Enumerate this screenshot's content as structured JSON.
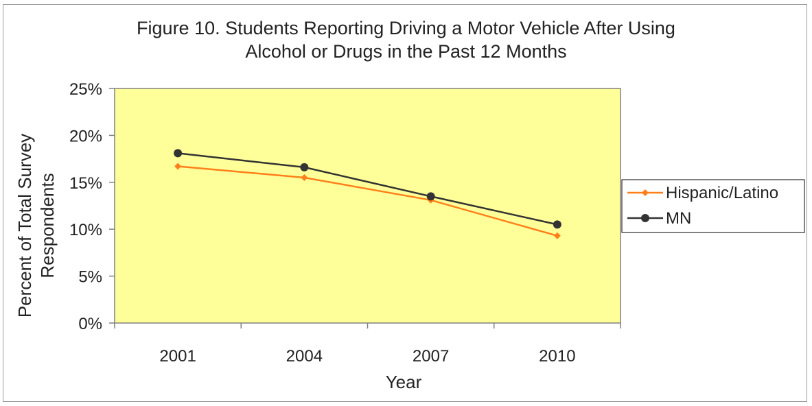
{
  "chart_data": {
    "type": "line",
    "title_line1": "Figure 10. Students Reporting Driving a Motor Vehicle After Using",
    "title_line2": "Alcohol or Drugs in the Past 12 Months",
    "xlabel": "Year",
    "ylabel_line1": "Percent of Total Survey",
    "ylabel_line2": "Respondents",
    "categories": [
      "2001",
      "2004",
      "2007",
      "2010"
    ],
    "y_ticks": [
      "0%",
      "5%",
      "10%",
      "15%",
      "20%",
      "25%"
    ],
    "ylim": [
      0,
      25
    ],
    "grid": false,
    "legend_position": "right",
    "plot_background": "#ffff99",
    "series": [
      {
        "name": "Hispanic/Latino",
        "color": "#ff7f1a",
        "marker": "diamond",
        "values": [
          16.7,
          15.5,
          13.1,
          9.3
        ]
      },
      {
        "name": "MN",
        "color": "#333333",
        "marker": "circle",
        "values": [
          18.1,
          16.6,
          13.5,
          10.5
        ]
      }
    ]
  }
}
